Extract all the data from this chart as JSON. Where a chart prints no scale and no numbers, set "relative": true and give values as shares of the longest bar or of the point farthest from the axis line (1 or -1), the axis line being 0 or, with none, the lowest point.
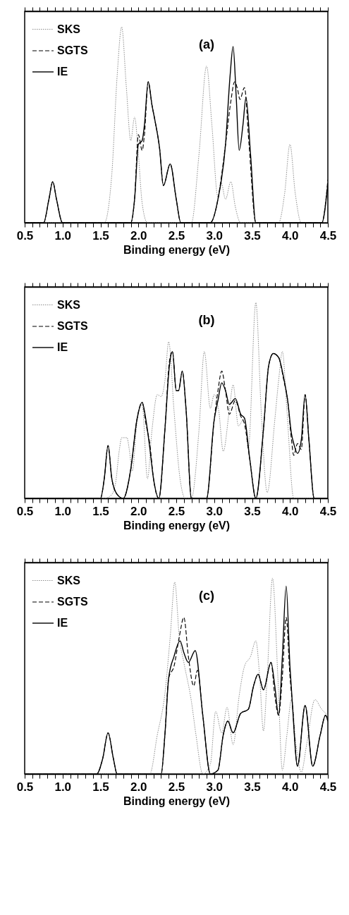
{
  "chart_data": [
    {
      "type": "line",
      "relative": true,
      "xlabel": "Binding energy (eV)",
      "annotations": [
        "(a)"
      ],
      "legend": "top left",
      "xlim": [
        0.5,
        4.5
      ],
      "xticks": [
        0.5,
        {
          "value": 0.6,
          "label": null
        },
        {
          "value": 0.7,
          "label": null
        },
        {
          "value": 0.8,
          "label": null
        },
        {
          "value": 0.9,
          "label": null
        },
        {
          "value": 1,
          "label": "1.0"
        },
        {
          "value": 1.1,
          "label": null
        },
        {
          "value": 1.2,
          "label": null
        },
        {
          "value": 1.3,
          "label": null
        },
        {
          "value": 1.4,
          "label": null
        },
        1.5,
        {
          "value": 1.6,
          "label": null
        },
        {
          "value": 1.7,
          "label": null
        },
        {
          "value": 1.8,
          "label": null
        },
        {
          "value": 1.9,
          "label": null
        },
        {
          "value": 2,
          "label": "2.0"
        },
        {
          "value": 2.1,
          "label": null
        },
        {
          "value": 2.2,
          "label": null
        },
        {
          "value": 2.3,
          "label": null
        },
        {
          "value": 2.4,
          "label": null
        },
        2.5,
        {
          "value": 2.6,
          "label": null
        },
        {
          "value": 2.7,
          "label": null
        },
        {
          "value": 2.8,
          "label": null
        },
        {
          "value": 2.9,
          "label": null
        },
        {
          "value": 3,
          "label": "3.0"
        },
        {
          "value": 3.1,
          "label": null
        },
        {
          "value": 3.2,
          "label": null
        },
        {
          "value": 3.3,
          "label": null
        },
        {
          "value": 3.4,
          "label": null
        },
        3.5,
        {
          "value": 3.6,
          "label": null
        },
        {
          "value": 3.7,
          "label": null
        },
        {
          "value": 3.8,
          "label": null
        },
        {
          "value": 3.9,
          "label": null
        },
        {
          "value": 4,
          "label": "4.0"
        },
        {
          "value": 4.1,
          "label": null
        },
        {
          "value": 4.2,
          "label": null
        },
        {
          "value": 4.3,
          "label": null
        },
        {
          "value": 4.4,
          "label": null
        },
        4.5
      ],
      "series": [
        {
          "name": "SKS",
          "color": "#808080",
          "line_style": "dotted",
          "x": [
            0.5,
            1.55,
            1.65,
            1.72,
            1.78,
            1.84,
            1.9,
            1.95,
            2.0,
            2.05,
            2.12,
            2.7,
            2.8,
            2.9,
            2.97,
            3.05,
            3.09,
            3.15,
            3.22,
            3.28,
            3.35,
            3.85,
            3.93,
            4.0,
            4.07,
            4.15,
            4.5
          ],
          "values": [
            0,
            0,
            0.25,
            0.75,
            1.0,
            0.7,
            0.42,
            0.54,
            0.35,
            0.1,
            0,
            0,
            0.35,
            0.8,
            0.5,
            0.13,
            0.21,
            0.12,
            0.21,
            0.08,
            0,
            0,
            0.15,
            0.4,
            0.15,
            0,
            0
          ]
        },
        {
          "name": "SGTS",
          "color": "#000000",
          "line_style": "dashed",
          "x": [
            0.5,
            0.75,
            0.82,
            0.87,
            0.92,
            1.0,
            1.9,
            1.95,
            2.0,
            2.05,
            2.08,
            2.13,
            2.18,
            2.22,
            2.28,
            2.33,
            2.42,
            2.5,
            2.56,
            2.95,
            3.05,
            3.15,
            3.22,
            3.27,
            3.31,
            3.34,
            3.4,
            3.46,
            3.55,
            4.42,
            4.5
          ],
          "values": [
            0,
            0,
            0.12,
            0.21,
            0.12,
            0,
            0,
            0.12,
            0.45,
            0.37,
            0.45,
            0.72,
            0.6,
            0.52,
            0.38,
            0.19,
            0.3,
            0.12,
            0,
            0,
            0.12,
            0.4,
            0.62,
            0.72,
            0.68,
            0.63,
            0.69,
            0.4,
            0,
            0,
            0.22
          ]
        },
        {
          "name": "IE",
          "color": "#000000",
          "line_style": "solid",
          "x": [
            0.5,
            0.75,
            0.82,
            0.87,
            0.92,
            1.0,
            1.9,
            1.95,
            2.0,
            2.05,
            2.08,
            2.13,
            2.18,
            2.22,
            2.28,
            2.33,
            2.42,
            2.5,
            2.56,
            2.95,
            3.05,
            3.15,
            3.21,
            3.25,
            3.29,
            3.33,
            3.38,
            3.42,
            3.48,
            3.55,
            4.42,
            4.5
          ],
          "values": [
            0,
            0,
            0.12,
            0.21,
            0.12,
            0,
            0,
            0.12,
            0.4,
            0.42,
            0.5,
            0.72,
            0.6,
            0.52,
            0.38,
            0.19,
            0.3,
            0.12,
            0,
            0,
            0.12,
            0.4,
            0.75,
            0.9,
            0.65,
            0.37,
            0.5,
            0.64,
            0.35,
            0,
            0,
            0.2
          ]
        }
      ]
    },
    {
      "type": "line",
      "relative": true,
      "xlabel": "Binding energy (eV)",
      "annotations": [
        "(b)"
      ],
      "legend": "top left",
      "xlim": [
        0.5,
        4.5
      ],
      "xticks": [
        0.5,
        {
          "value": 0.6,
          "label": null
        },
        {
          "value": 0.7,
          "label": null
        },
        {
          "value": 0.8,
          "label": null
        },
        {
          "value": 0.9,
          "label": null
        },
        {
          "value": 1,
          "label": "1.0"
        },
        {
          "value": 1.1,
          "label": null
        },
        {
          "value": 1.2,
          "label": null
        },
        {
          "value": 1.3,
          "label": null
        },
        {
          "value": 1.4,
          "label": null
        },
        1.5,
        {
          "value": 1.6,
          "label": null
        },
        {
          "value": 1.7,
          "label": null
        },
        {
          "value": 1.8,
          "label": null
        },
        {
          "value": 1.9,
          "label": null
        },
        {
          "value": 2,
          "label": "2.0"
        },
        {
          "value": 2.1,
          "label": null
        },
        {
          "value": 2.2,
          "label": null
        },
        {
          "value": 2.3,
          "label": null
        },
        {
          "value": 2.4,
          "label": null
        },
        2.5,
        {
          "value": 2.6,
          "label": null
        },
        {
          "value": 2.7,
          "label": null
        },
        {
          "value": 2.8,
          "label": null
        },
        {
          "value": 2.9,
          "label": null
        },
        {
          "value": 3,
          "label": "3.0"
        },
        {
          "value": 3.1,
          "label": null
        },
        {
          "value": 3.2,
          "label": null
        },
        {
          "value": 3.3,
          "label": null
        },
        {
          "value": 3.4,
          "label": null
        },
        3.5,
        {
          "value": 3.6,
          "label": null
        },
        {
          "value": 3.7,
          "label": null
        },
        {
          "value": 3.8,
          "label": null
        },
        {
          "value": 3.9,
          "label": null
        },
        {
          "value": 4,
          "label": "4.0"
        },
        {
          "value": 4.1,
          "label": null
        },
        {
          "value": 4.2,
          "label": null
        },
        {
          "value": 4.3,
          "label": null
        },
        {
          "value": 4.4,
          "label": null
        },
        4.5
      ],
      "series": [
        {
          "name": "SKS",
          "color": "#808080",
          "line_style": "dotted",
          "x": [
            0.5,
            1.55,
            1.65,
            1.7,
            1.75,
            1.78,
            1.85,
            1.88,
            1.92,
            1.98,
            2.05,
            2.12,
            2.18,
            2.25,
            2.3,
            2.35,
            2.4,
            2.47,
            2.55,
            2.62,
            2.7,
            2.8,
            2.87,
            2.95,
            3.0,
            3.06,
            3.12,
            3.2,
            3.25,
            3.32,
            3.4,
            3.45,
            3.55,
            3.62,
            3.7,
            3.8,
            3.85,
            3.9,
            3.96,
            4.05,
            4.5
          ],
          "values": [
            0,
            0,
            0.02,
            0.08,
            0.25,
            0.31,
            0.31,
            0.25,
            0.14,
            0.38,
            0.48,
            0.1,
            0.35,
            0.53,
            0.52,
            0.6,
            0.8,
            0.45,
            0.1,
            0,
            0,
            0.35,
            0.75,
            0.46,
            0.53,
            0.45,
            0.24,
            0.45,
            0.58,
            0.37,
            0.41,
            0.25,
            1.0,
            0.45,
            0.03,
            0.4,
            0.6,
            0.75,
            0.45,
            0,
            0
          ]
        },
        {
          "name": "SGTS",
          "color": "#000000",
          "line_style": "dashed",
          "x": [
            0.5,
            1.5,
            1.55,
            1.6,
            1.65,
            1.72,
            1.8,
            1.9,
            1.98,
            2.05,
            2.1,
            2.15,
            2.2,
            2.27,
            2.35,
            2.41,
            2.45,
            2.5,
            2.53,
            2.58,
            2.63,
            2.7,
            2.9,
            3.0,
            3.05,
            3.1,
            3.15,
            3.2,
            3.28,
            3.35,
            3.4,
            3.47,
            3.55,
            3.65,
            3.72,
            3.78,
            3.85,
            3.92,
            3.97,
            4.02,
            4.05,
            4.1,
            4.15,
            4.2,
            4.25,
            4.32,
            4.5
          ],
          "values": [
            0,
            0,
            0.1,
            0.27,
            0.1,
            0.02,
            0,
            0.15,
            0.4,
            0.49,
            0.38,
            0.28,
            0.1,
            0,
            0.35,
            0.7,
            0.75,
            0.55,
            0.55,
            0.65,
            0.45,
            0,
            0,
            0.4,
            0.55,
            0.65,
            0.55,
            0.43,
            0.5,
            0.42,
            0.38,
            0.2,
            0,
            0.35,
            0.68,
            0.74,
            0.72,
            0.6,
            0.5,
            0.3,
            0.22,
            0.28,
            0.25,
            0.53,
            0.3,
            0,
            0
          ]
        },
        {
          "name": "IE",
          "color": "#000000",
          "line_style": "solid",
          "x": [
            0.5,
            1.5,
            1.55,
            1.6,
            1.65,
            1.72,
            1.8,
            1.9,
            1.98,
            2.05,
            2.1,
            2.15,
            2.2,
            2.27,
            2.35,
            2.41,
            2.45,
            2.5,
            2.53,
            2.58,
            2.63,
            2.7,
            2.9,
            3.0,
            3.05,
            3.1,
            3.15,
            3.2,
            3.28,
            3.35,
            3.4,
            3.47,
            3.55,
            3.65,
            3.72,
            3.78,
            3.85,
            3.92,
            3.97,
            4.02,
            4.05,
            4.1,
            4.15,
            4.2,
            4.25,
            4.32,
            4.5
          ],
          "values": [
            0,
            0,
            0.1,
            0.27,
            0.1,
            0.02,
            0,
            0.15,
            0.4,
            0.49,
            0.4,
            0.26,
            0.1,
            0,
            0.35,
            0.68,
            0.75,
            0.55,
            0.55,
            0.65,
            0.45,
            0,
            0,
            0.4,
            0.5,
            0.59,
            0.55,
            0.48,
            0.51,
            0.43,
            0.41,
            0.2,
            0,
            0.35,
            0.68,
            0.74,
            0.72,
            0.61,
            0.5,
            0.33,
            0.28,
            0.23,
            0.3,
            0.53,
            0.3,
            0,
            0
          ]
        }
      ]
    },
    {
      "type": "line",
      "relative": true,
      "xlabel": "Binding energy (eV)",
      "annotations": [
        "(c)"
      ],
      "legend": "top left",
      "xlim": [
        0.5,
        4.5
      ],
      "xticks": [
        0.5,
        {
          "value": 0.6,
          "label": null
        },
        {
          "value": 0.7,
          "label": null
        },
        {
          "value": 0.8,
          "label": null
        },
        {
          "value": 0.9,
          "label": null
        },
        {
          "value": 1,
          "label": "1.0"
        },
        {
          "value": 1.1,
          "label": null
        },
        {
          "value": 1.2,
          "label": null
        },
        {
          "value": 1.3,
          "label": null
        },
        {
          "value": 1.4,
          "label": null
        },
        1.5,
        {
          "value": 1.6,
          "label": null
        },
        {
          "value": 1.7,
          "label": null
        },
        {
          "value": 1.8,
          "label": null
        },
        {
          "value": 1.9,
          "label": null
        },
        {
          "value": 2,
          "label": "2.0"
        },
        {
          "value": 2.1,
          "label": null
        },
        {
          "value": 2.2,
          "label": null
        },
        {
          "value": 2.3,
          "label": null
        },
        {
          "value": 2.4,
          "label": null
        },
        2.5,
        {
          "value": 2.6,
          "label": null
        },
        {
          "value": 2.7,
          "label": null
        },
        {
          "value": 2.8,
          "label": null
        },
        {
          "value": 2.9,
          "label": null
        },
        {
          "value": 3,
          "label": "3.0"
        },
        {
          "value": 3.1,
          "label": null
        },
        {
          "value": 3.2,
          "label": null
        },
        {
          "value": 3.3,
          "label": null
        },
        {
          "value": 3.4,
          "label": null
        },
        3.5,
        {
          "value": 3.6,
          "label": null
        },
        {
          "value": 3.7,
          "label": null
        },
        {
          "value": 3.8,
          "label": null
        },
        {
          "value": 3.9,
          "label": null
        },
        {
          "value": 4,
          "label": "4.0"
        },
        {
          "value": 4.1,
          "label": null
        },
        {
          "value": 4.2,
          "label": null
        },
        {
          "value": 4.3,
          "label": null
        },
        {
          "value": 4.4,
          "label": null
        },
        4.5
      ],
      "series": [
        {
          "name": "SKS",
          "color": "#808080",
          "line_style": "dotted",
          "x": [
            0.5,
            2.15,
            2.25,
            2.35,
            2.42,
            2.48,
            2.54,
            2.6,
            2.7,
            2.76,
            2.85,
            2.95,
            3.02,
            3.1,
            3.17,
            3.25,
            3.33,
            3.4,
            3.48,
            3.55,
            3.6,
            3.65,
            3.7,
            3.77,
            3.84,
            3.9,
            3.96,
            4.02,
            4.08,
            4.15,
            4.22,
            4.33,
            4.42,
            4.5
          ],
          "values": [
            0,
            0,
            0.2,
            0.41,
            0.7,
            0.98,
            0.7,
            0.57,
            0.37,
            0.2,
            0,
            0.05,
            0.32,
            0.21,
            0.34,
            0.15,
            0.4,
            0.55,
            0.6,
            0.68,
            0.5,
            0.22,
            0.5,
            1.0,
            0.5,
            0.02,
            0.2,
            0.38,
            0.15,
            0.01,
            0.15,
            0.38,
            0.33,
            0.3
          ]
        },
        {
          "name": "SGTS",
          "color": "#000000",
          "line_style": "dashed",
          "x": [
            0.5,
            1.45,
            1.53,
            1.6,
            1.67,
            1.72,
            2.3,
            2.35,
            2.4,
            2.47,
            2.54,
            2.6,
            2.66,
            2.73,
            2.78,
            2.85,
            2.95,
            3.05,
            3.12,
            3.18,
            3.25,
            3.35,
            3.45,
            3.52,
            3.58,
            3.65,
            3.75,
            3.8,
            3.85,
            3.9,
            3.95,
            4.0,
            4.03,
            4.1,
            4.2,
            4.3,
            4.4,
            4.47,
            4.5
          ],
          "values": [
            0,
            0,
            0.08,
            0.21,
            0.08,
            0,
            0,
            0.2,
            0.49,
            0.55,
            0.7,
            0.8,
            0.6,
            0.45,
            0.53,
            0.3,
            0,
            0.02,
            0.2,
            0.27,
            0.21,
            0.31,
            0.33,
            0.45,
            0.51,
            0.43,
            0.57,
            0.4,
            0.3,
            0.5,
            0.8,
            0.5,
            0.37,
            0.04,
            0.35,
            0.04,
            0.2,
            0.3,
            0.27
          ]
        },
        {
          "name": "IE",
          "color": "#000000",
          "line_style": "solid",
          "x": [
            0.5,
            1.45,
            1.53,
            1.6,
            1.67,
            1.72,
            2.3,
            2.35,
            2.4,
            2.47,
            2.55,
            2.6,
            2.66,
            2.75,
            2.85,
            2.95,
            3.05,
            3.12,
            3.18,
            3.25,
            3.35,
            3.45,
            3.52,
            3.58,
            3.65,
            3.75,
            3.8,
            3.85,
            3.9,
            3.95,
            4.0,
            4.03,
            4.1,
            4.2,
            4.3,
            4.4,
            4.47,
            4.5
          ],
          "values": [
            0,
            0,
            0.08,
            0.21,
            0.08,
            0,
            0,
            0.2,
            0.49,
            0.6,
            0.68,
            0.62,
            0.57,
            0.63,
            0.3,
            0,
            0.02,
            0.2,
            0.27,
            0.21,
            0.31,
            0.33,
            0.45,
            0.51,
            0.43,
            0.57,
            0.45,
            0.3,
            0.6,
            0.96,
            0.55,
            0.37,
            0.04,
            0.35,
            0.04,
            0.2,
            0.3,
            0.27
          ]
        }
      ]
    }
  ]
}
